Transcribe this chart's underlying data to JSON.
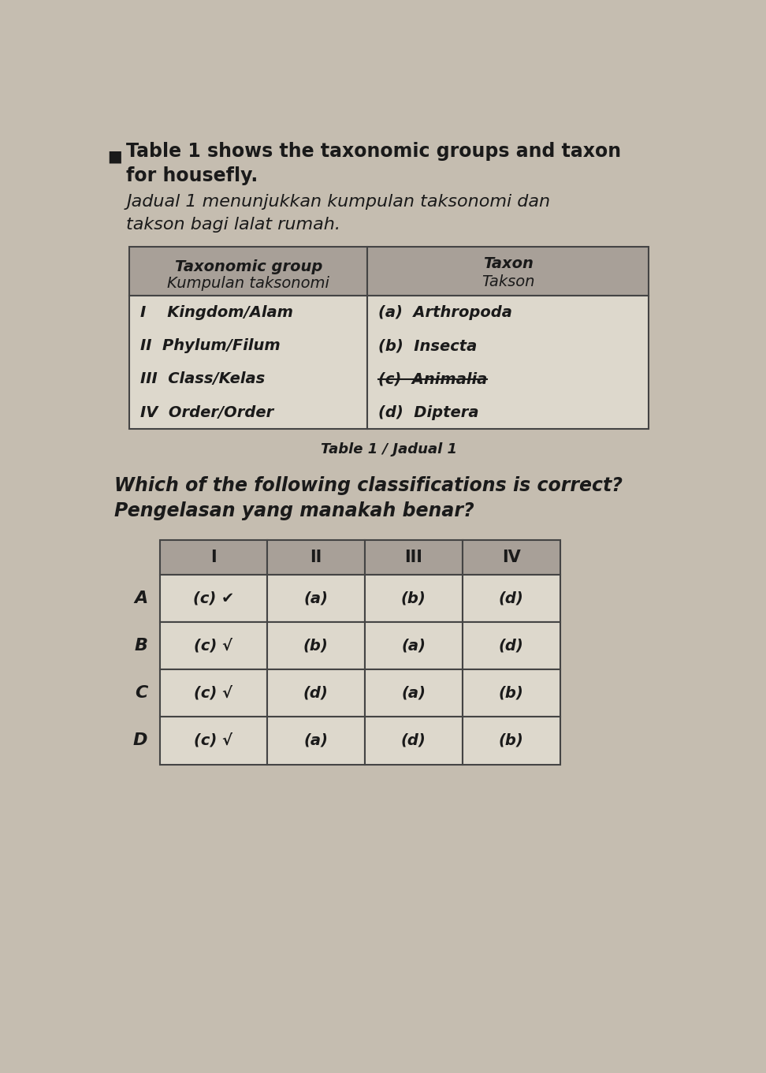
{
  "bg_color": "#c5bdb0",
  "text_color": "#1a1a1a",
  "header_line1": "Table 1 shows the taxonomic groups and taxon",
  "header_line2": "for housefly.",
  "subheader_line1": "Jadual 1 menunjukkan kumpulan taksonomi dan",
  "subheader_line2": "takson bagi lalat rumah.",
  "table1_header_col1_line1": "Taxonomic group",
  "table1_header_col1_line2": "Kumpulan taksonomi",
  "table1_header_col2_line1": "Taxon",
  "table1_header_col2_line2": "Takson",
  "table1_col1": [
    "I    Kingdom/Alam",
    "II  Phylum/Filum",
    "III  Class/Kelas",
    "IV  Order/Order"
  ],
  "table1_col2": [
    "(a)  Arthropoda",
    "(b)  Insecta",
    "(c)  Animalia",
    "(d)  Diptera"
  ],
  "table1_strikethrough_idx": 2,
  "table1_caption": "Table 1 / Jadual 1",
  "question_line1": "Which of the following classifications is correct?",
  "question_line2": "Pengelasan yang manakah benar?",
  "table2_col_headers": [
    "I",
    "II",
    "III",
    "IV"
  ],
  "table2_row_labels": [
    "A",
    "B",
    "C",
    "D"
  ],
  "table2_data": [
    [
      "(c) ✔",
      "(a)",
      "(b)",
      "(d)"
    ],
    [
      "(c) √",
      "(b)",
      "(a)",
      "(d)"
    ],
    [
      "(c) √",
      "(d)",
      "(a)",
      "(b)"
    ],
    [
      "(c) √",
      "(a)",
      "(d)",
      "(b)"
    ]
  ],
  "header_bg": "#a8a098",
  "cell_bg": "#ddd8cc",
  "table_border": "#444444",
  "caption_style": "italic"
}
